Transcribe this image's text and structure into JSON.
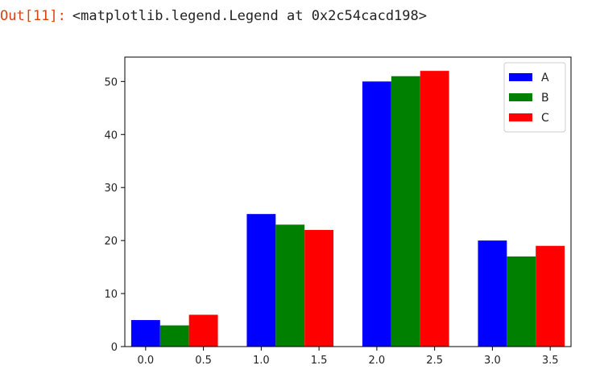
{
  "output": {
    "prompt": "Out[11]:",
    "text": "<matplotlib.legend.Legend at 0x2c54cacd198>"
  },
  "chart_data": {
    "type": "bar",
    "x": [
      0.0,
      1.0,
      2.0,
      3.0
    ],
    "bar_width": 0.25,
    "series": [
      {
        "name": "A",
        "color": "#0000ff",
        "offset": 0.0,
        "values": [
          5,
          25,
          50,
          20
        ]
      },
      {
        "name": "B",
        "color": "#008000",
        "offset": 0.25,
        "values": [
          4,
          23,
          51,
          17
        ]
      },
      {
        "name": "C",
        "color": "#ff0000",
        "offset": 0.5,
        "values": [
          6,
          22,
          52,
          19
        ]
      }
    ],
    "xticks": [
      0.0,
      0.5,
      1.0,
      1.5,
      2.0,
      2.5,
      3.0,
      3.5
    ],
    "xtick_labels": [
      "0.0",
      "0.5",
      "1.0",
      "1.5",
      "2.0",
      "2.5",
      "3.0",
      "3.5"
    ],
    "yticks": [
      0,
      10,
      20,
      30,
      40,
      50
    ],
    "ytick_labels": [
      "0",
      "10",
      "20",
      "30",
      "40",
      "50"
    ],
    "xlim": [
      -0.18,
      3.68
    ],
    "ylim": [
      0,
      54.6
    ],
    "grid": false,
    "legend_position": "top-right"
  }
}
